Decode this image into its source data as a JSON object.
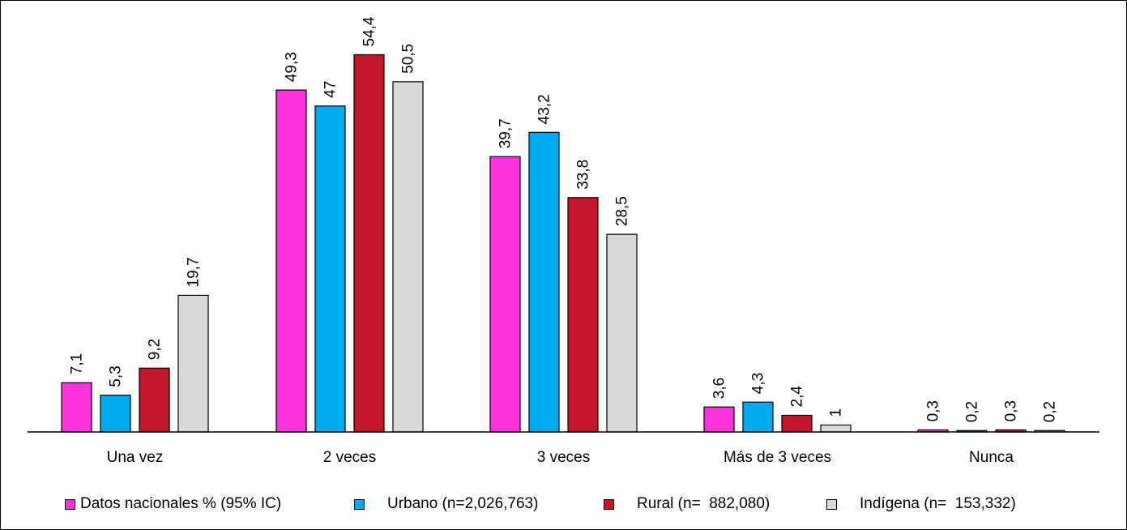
{
  "chart_data": {
    "type": "bar",
    "categories": [
      "Una vez",
      "2 veces",
      "3 veces",
      "Más de 3 veces",
      "Nunca"
    ],
    "ylim": [
      0,
      62
    ],
    "series": [
      {
        "name": "Datos nacionales % (95% IC)",
        "color": "#ff33dd",
        "values": [
          7.1,
          49.3,
          39.7,
          3.6,
          0.3
        ],
        "labels": [
          "7,1",
          "49,3",
          "39,7",
          "3,6",
          "0,3"
        ]
      },
      {
        "name": "Urbano (n=2,026,763)",
        "color": "#00aaee",
        "values": [
          5.3,
          47,
          43.2,
          4.3,
          0.2
        ],
        "labels": [
          "5,3",
          "47",
          "43,2",
          "4,3",
          "0,2"
        ]
      },
      {
        "name": "Rural (n=  882,080)",
        "color": "#c0152a",
        "values": [
          9.2,
          54.4,
          33.8,
          2.4,
          0.3
        ],
        "labels": [
          "9,2",
          "54,4",
          "33,8",
          "2,4",
          "0,3"
        ]
      },
      {
        "name": "Indígena (n=  153,332)",
        "color": "#d9d9d9",
        "values": [
          19.7,
          50.5,
          28.5,
          1,
          0.2
        ],
        "labels": [
          "19,7",
          "50,5",
          "28,5",
          "1",
          "0,2"
        ]
      }
    ],
    "legend_position": "bottom",
    "grid": false
  }
}
